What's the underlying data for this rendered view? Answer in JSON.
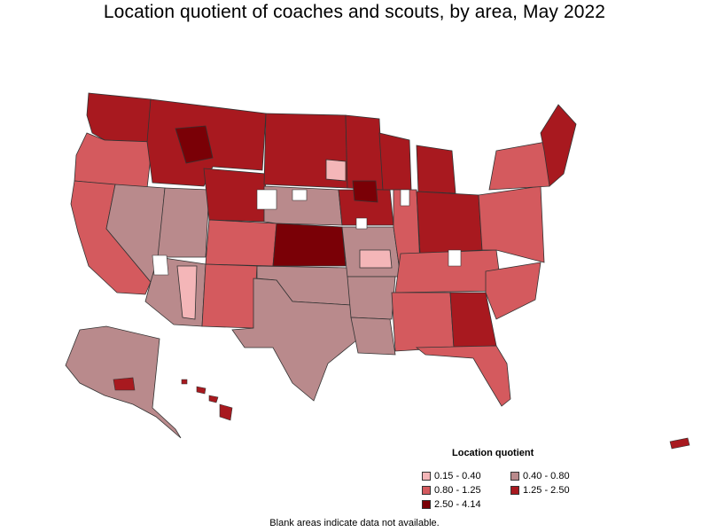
{
  "title": "Location quotient of coaches and scouts, by area, May 2022",
  "legend": {
    "title": "Location quotient",
    "items": [
      {
        "label": "0.15 - 0.40",
        "color": "#f4b6b8"
      },
      {
        "label": "0.40 - 0.80",
        "color": "#b98a8c"
      },
      {
        "label": "0.80 - 1.25",
        "color": "#d45a5e"
      },
      {
        "label": "1.25 - 2.50",
        "color": "#a8191f"
      },
      {
        "label": "2.50 - 4.14",
        "color": "#7a0006"
      }
    ]
  },
  "footnote": "Blank areas indicate data not available.",
  "colors": {
    "very_low": "#f4b6b8",
    "low": "#b98a8c",
    "mid": "#d45a5e",
    "high": "#a8191f",
    "very_high": "#7a0006",
    "border": "#333333"
  }
}
